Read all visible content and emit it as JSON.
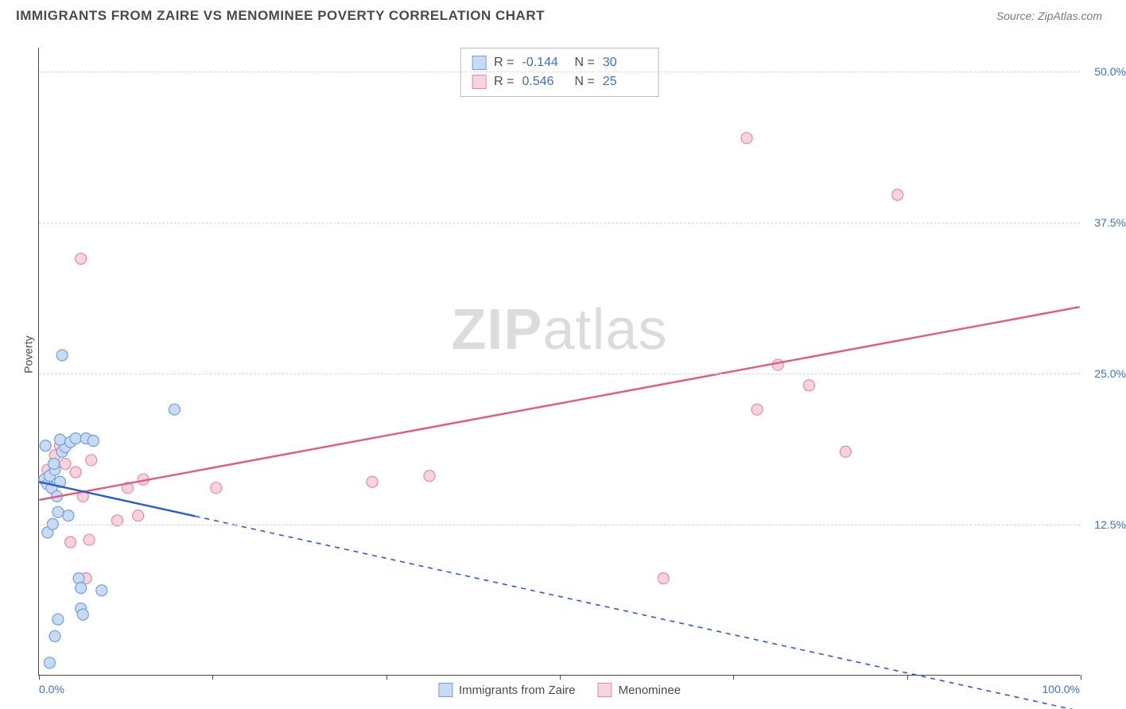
{
  "header": {
    "title": "IMMIGRANTS FROM ZAIRE VS MENOMINEE POVERTY CORRELATION CHART",
    "source_prefix": "Source: ",
    "source_name": "ZipAtlas.com"
  },
  "watermark": {
    "zip": "ZIP",
    "atlas": "atlas"
  },
  "chart": {
    "type": "scatter",
    "ylabel": "Poverty",
    "xlim": [
      0,
      100
    ],
    "ylim": [
      0,
      52
    ],
    "background_color": "#ffffff",
    "grid_color": "#d6d6d6",
    "axis_color": "#4a4a4a",
    "tick_label_color": "#3b6fd6",
    "yticks": [
      {
        "v": 12.5,
        "label": "12.5%"
      },
      {
        "v": 25.0,
        "label": "25.0%"
      },
      {
        "v": 37.5,
        "label": "37.5%"
      },
      {
        "v": 50.0,
        "label": "50.0%"
      }
    ],
    "xticks_minor": [
      0,
      16.67,
      33.33,
      50,
      66.67,
      83.33,
      100
    ],
    "xtick_labels": [
      {
        "v": 0,
        "label": "0.0%",
        "align": "left"
      },
      {
        "v": 100,
        "label": "100.0%",
        "align": "right"
      }
    ],
    "marker_radius": 7,
    "marker_stroke_width": 1.2,
    "trend_line_width": 2.4,
    "trend_solid_xmax": 15,
    "series": {
      "zaire": {
        "label": "Immigrants from Zaire",
        "fill": "#c8dbf4",
        "stroke": "#6f9fe0",
        "line_color": "#2a5bd7",
        "R": "-0.144",
        "N": "30",
        "trend": {
          "x1": 0,
          "y1": 16.0,
          "x2": 100,
          "y2": -3.0
        },
        "points": [
          [
            0.5,
            16.2
          ],
          [
            0.8,
            15.8
          ],
          [
            1.0,
            16.5
          ],
          [
            1.2,
            15.5
          ],
          [
            1.5,
            17.0
          ],
          [
            1.7,
            14.8
          ],
          [
            2.0,
            16.0
          ],
          [
            2.2,
            18.5
          ],
          [
            2.5,
            18.9
          ],
          [
            2.0,
            19.5
          ],
          [
            0.6,
            19.0
          ],
          [
            1.4,
            17.5
          ],
          [
            3.0,
            19.3
          ],
          [
            3.5,
            19.6
          ],
          [
            4.5,
            19.6
          ],
          [
            5.2,
            19.4
          ],
          [
            2.2,
            26.5
          ],
          [
            13.0,
            22.0
          ],
          [
            1.8,
            13.5
          ],
          [
            2.8,
            13.2
          ],
          [
            3.8,
            8.0
          ],
          [
            4.0,
            7.2
          ],
          [
            6.0,
            7.0
          ],
          [
            4.0,
            5.5
          ],
          [
            4.2,
            5.0
          ],
          [
            1.8,
            4.6
          ],
          [
            1.5,
            3.2
          ],
          [
            1.0,
            1.0
          ],
          [
            0.8,
            11.8
          ],
          [
            1.3,
            12.5
          ]
        ]
      },
      "menominee": {
        "label": "Menominee",
        "fill": "#f7d4dd",
        "stroke": "#e88aa3",
        "line_color": "#e35a7e",
        "R": "0.546",
        "N": "25",
        "trend": {
          "x1": 0,
          "y1": 14.5,
          "x2": 100,
          "y2": 30.5
        },
        "points": [
          [
            68.0,
            44.5
          ],
          [
            82.5,
            39.8
          ],
          [
            4.0,
            34.5
          ],
          [
            71.0,
            25.7
          ],
          [
            74.0,
            24.0
          ],
          [
            69.0,
            22.0
          ],
          [
            77.5,
            18.5
          ],
          [
            60.0,
            8.0
          ],
          [
            32.0,
            16.0
          ],
          [
            37.5,
            16.5
          ],
          [
            8.5,
            15.5
          ],
          [
            10.0,
            16.2
          ],
          [
            17.0,
            15.5
          ],
          [
            5.0,
            17.8
          ],
          [
            2.0,
            19.0
          ],
          [
            2.5,
            17.5
          ],
          [
            1.5,
            18.2
          ],
          [
            0.8,
            17.0
          ],
          [
            3.5,
            16.8
          ],
          [
            4.2,
            14.8
          ],
          [
            3.0,
            11.0
          ],
          [
            4.8,
            11.2
          ],
          [
            7.5,
            12.8
          ],
          [
            9.5,
            13.2
          ],
          [
            4.5,
            8.0
          ]
        ]
      }
    }
  }
}
